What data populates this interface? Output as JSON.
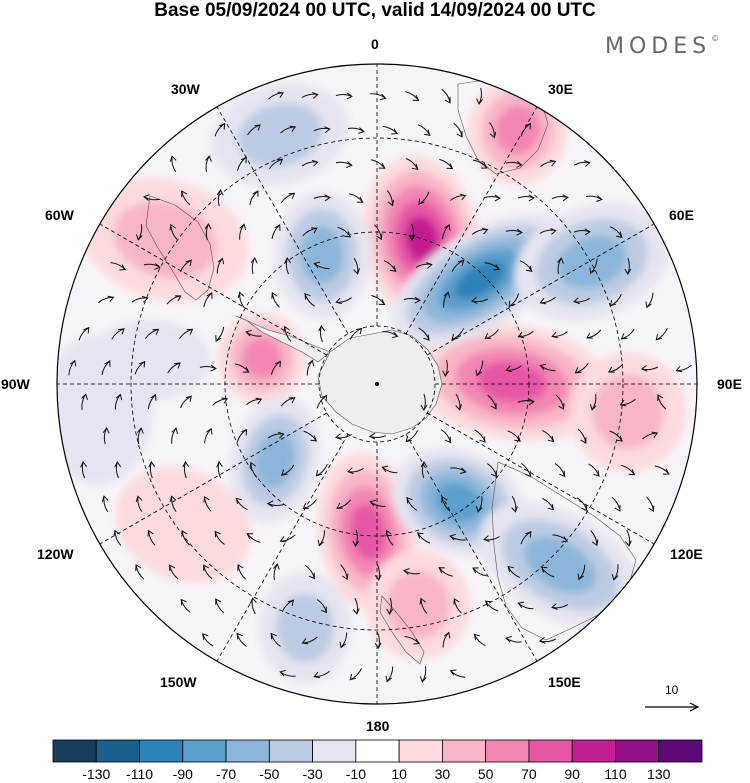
{
  "title": "Base 05/09/2024 00 UTC, valid 14/09/2024 00 UTC",
  "logo": "MODES",
  "logo_mark": "©",
  "projection": "south-polar-stereographic",
  "longitude_labels": [
    {
      "id": "lon-0",
      "text": "0"
    },
    {
      "id": "lon-30e",
      "text": "30E"
    },
    {
      "id": "lon-60e",
      "text": "60E"
    },
    {
      "id": "lon-90e",
      "text": "90E"
    },
    {
      "id": "lon-120e",
      "text": "120E"
    },
    {
      "id": "lon-150e",
      "text": "150E"
    },
    {
      "id": "lon-180",
      "text": "180"
    },
    {
      "id": "lon-150w",
      "text": "150W"
    },
    {
      "id": "lon-120w",
      "text": "120W"
    },
    {
      "id": "lon-90w",
      "text": "90W"
    },
    {
      "id": "lon-60w",
      "text": "60W"
    },
    {
      "id": "lon-30w",
      "text": "30W"
    }
  ],
  "vector_reference": {
    "value": "10"
  },
  "colorbar": {
    "colors": [
      "#183e5c",
      "#19608f",
      "#2d83b8",
      "#5b9fcc",
      "#8cb6d9",
      "#bccbe3",
      "#e5e4f0",
      "#ffffff",
      "#fcdadd",
      "#f8b5c6",
      "#f286b3",
      "#e556a5",
      "#c31e92",
      "#92108a",
      "#5e0a78"
    ],
    "ticks": [
      "-130",
      "-110",
      "-90",
      "-70",
      "-50",
      "-30",
      "-10",
      "10",
      "30",
      "50",
      "70",
      "90",
      "110",
      "130"
    ]
  }
}
